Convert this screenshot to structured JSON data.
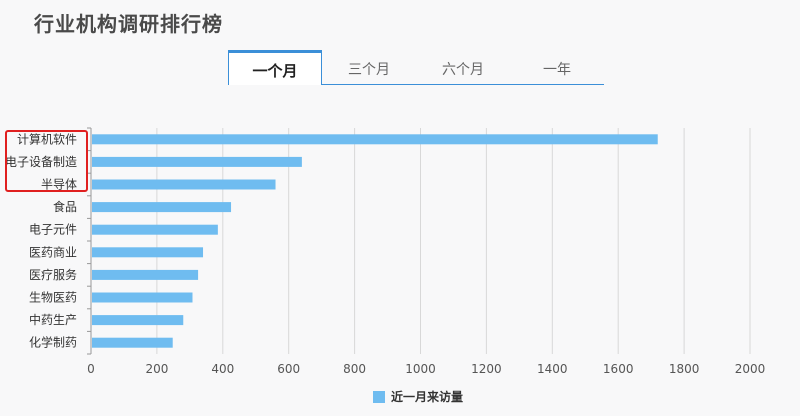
{
  "page": {
    "title": "行业机构调研排行榜"
  },
  "tabs": [
    {
      "label": "一个月",
      "active": true
    },
    {
      "label": "三个月",
      "active": false
    },
    {
      "label": "六个月",
      "active": false
    },
    {
      "label": "一年",
      "active": false
    }
  ],
  "colors": {
    "bar": "#6fbcf0",
    "accent": "#3b8fd8",
    "highlight": "#e02020"
  },
  "chart_data": {
    "type": "bar",
    "orientation": "horizontal",
    "categories": [
      "计算机软件",
      "电子设备制造",
      "半导体",
      "食品",
      "电子元件",
      "医药商业",
      "医疗服务",
      "生物医药",
      "中药生产",
      "化学制药"
    ],
    "series": [
      {
        "name": "近一月来访量",
        "values": [
          1720,
          640,
          560,
          425,
          385,
          340,
          325,
          308,
          280,
          248
        ]
      }
    ],
    "xlim": [
      0,
      2000
    ],
    "xticks": [
      0,
      200,
      400,
      600,
      800,
      1000,
      1200,
      1400,
      1600,
      1800,
      2000
    ],
    "grid": "vertical",
    "legend": "bottom-center"
  }
}
